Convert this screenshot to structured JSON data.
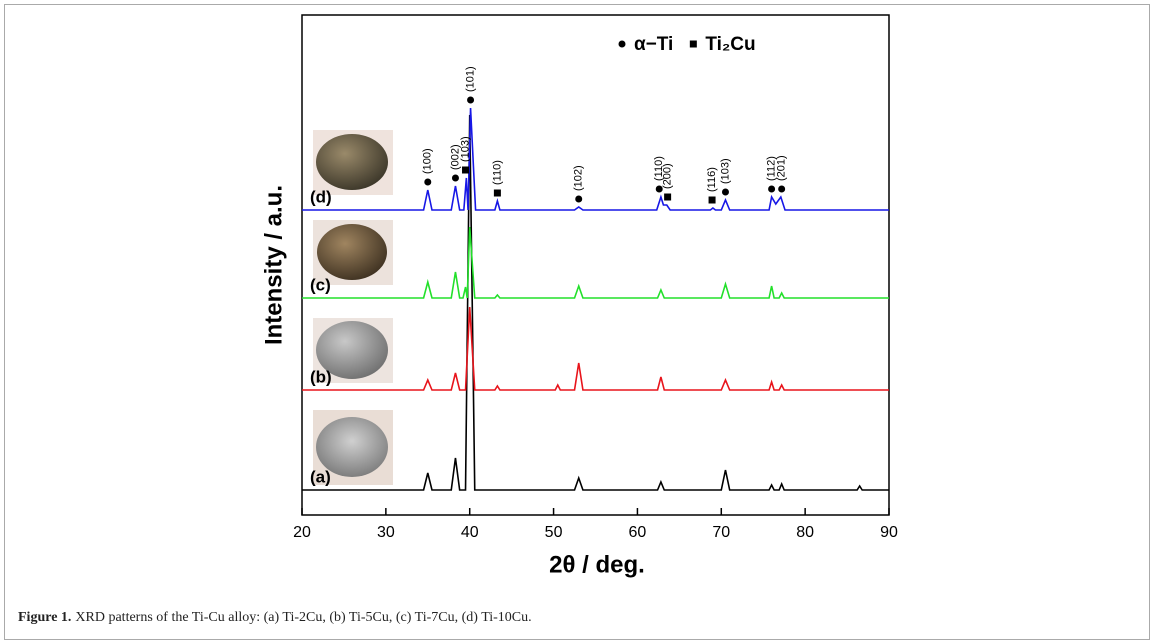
{
  "chart_data": {
    "type": "line",
    "xlabel": "2θ / deg.",
    "ylabel": "Intensity / a.u.",
    "xlim": [
      20,
      90
    ],
    "xticks": [
      20,
      30,
      40,
      50,
      60,
      70,
      80,
      90
    ],
    "ylim": [
      0,
      100
    ],
    "legend_markers": [
      {
        "name": "α−Ti",
        "shape": "circle"
      },
      {
        "name": "Ti₂Cu",
        "shape": "square"
      }
    ],
    "series": [
      {
        "name": "(a)",
        "color": "#000000",
        "x": [
          20,
          34.5,
          35,
          35.5,
          37.8,
          38.3,
          38.8,
          39.5,
          40,
          40.6,
          52.5,
          53,
          53.5,
          62.4,
          62.8,
          63.2,
          70,
          70.5,
          71,
          75.7,
          76,
          76.3,
          76.9,
          77.2,
          77.5,
          86.2,
          86.5,
          86.8,
          90
        ],
        "values": [
          5,
          5,
          8.4,
          5,
          5,
          11.4,
          5,
          5,
          80,
          5,
          5,
          7.4,
          5,
          5,
          6.6,
          5,
          5,
          9,
          5,
          5,
          6,
          5,
          5,
          6.2,
          5,
          5,
          5.8,
          5,
          5
        ]
      },
      {
        "name": "(b)",
        "color": "#e8141b",
        "x": [
          20,
          34.5,
          35,
          35.5,
          37.8,
          38.3,
          38.8,
          39.5,
          40,
          40.6,
          43,
          43.3,
          43.6,
          50.2,
          50.5,
          50.8,
          52.5,
          53,
          53.5,
          62.4,
          62.8,
          63.2,
          70,
          70.5,
          71,
          75.7,
          76,
          76.3,
          76.9,
          77.2,
          77.5,
          90
        ],
        "values": [
          25,
          25,
          27,
          25,
          25,
          28.4,
          25,
          25,
          41.6,
          25,
          25,
          25.8,
          25,
          25,
          26,
          25,
          25,
          30.4,
          25,
          25,
          27.6,
          25,
          25,
          27,
          25,
          25,
          26.6,
          25,
          25,
          26,
          25,
          25
        ]
      },
      {
        "name": "(c)",
        "color": "#22e02a",
        "x": [
          20,
          34.5,
          35,
          35.5,
          37.8,
          38.3,
          38.8,
          39.2,
          39.5,
          39.7,
          40,
          40.6,
          43,
          43.3,
          43.6,
          52.5,
          53,
          53.5,
          62.4,
          62.8,
          63.2,
          70,
          70.5,
          71,
          75.7,
          76,
          76.3,
          76.9,
          77.2,
          77.5,
          90
        ],
        "values": [
          43.4,
          43.4,
          46.6,
          43.4,
          43.4,
          48.6,
          43.4,
          43.4,
          45.6,
          43.4,
          57.6,
          43.4,
          43.4,
          44,
          43.4,
          43.4,
          45.8,
          43.4,
          43.4,
          45,
          43.4,
          43.4,
          46.2,
          43.4,
          43.4,
          45.8,
          43.4,
          43.4,
          44.4,
          43.4,
          43.4
        ]
      },
      {
        "name": "(d)",
        "color": "#1717e6",
        "x": [
          20,
          34.5,
          35,
          35.5,
          37.8,
          38.3,
          38.8,
          39.3,
          39.6,
          39.8,
          40.1,
          40.7,
          43,
          43.3,
          43.6,
          52.5,
          53,
          53.5,
          62.3,
          62.8,
          63.1,
          63.5,
          63.9,
          68.7,
          69,
          69.3,
          70,
          70.5,
          71,
          75.7,
          76,
          76.5,
          77.1,
          77.6,
          90
        ],
        "values": [
          61,
          61,
          65,
          61,
          61,
          65.8,
          61,
          61,
          67.4,
          61,
          81.4,
          61,
          61,
          62.8,
          61,
          61,
          61.6,
          61,
          61,
          63.6,
          62,
          62,
          61,
          61,
          61.4,
          61,
          61,
          63,
          61,
          61,
          63.6,
          62.2,
          63.6,
          61,
          61
        ]
      }
    ],
    "annotations": [
      {
        "label": "(100)",
        "x": 35,
        "marker": "circle"
      },
      {
        "label": "(002)",
        "x": 38.3,
        "marker": "circle"
      },
      {
        "label": "(103)",
        "x": 39.5,
        "marker": "square"
      },
      {
        "label": "(101)",
        "x": 40.1,
        "marker": "circle"
      },
      {
        "label": "(110)",
        "x": 43.3,
        "marker": "square"
      },
      {
        "label": "(102)",
        "x": 53,
        "marker": "circle"
      },
      {
        "label": "(110)",
        "x": 62.6,
        "marker": "circle"
      },
      {
        "label": "(200)",
        "x": 63.6,
        "marker": "square"
      },
      {
        "label": "(116)",
        "x": 68.9,
        "marker": "square"
      },
      {
        "label": "(103)",
        "x": 70.5,
        "marker": "circle"
      },
      {
        "label": "(112)",
        "x": 76,
        "marker": "circle"
      },
      {
        "label": "(201)",
        "x": 77.2,
        "marker": "circle"
      }
    ]
  },
  "caption": {
    "label": "Figure 1.",
    "text": "XRD patterns of the Ti-Cu alloy: (a) Ti-2Cu, (b) Ti-5Cu, (c) Ti-7Cu, (d) Ti-10Cu."
  }
}
